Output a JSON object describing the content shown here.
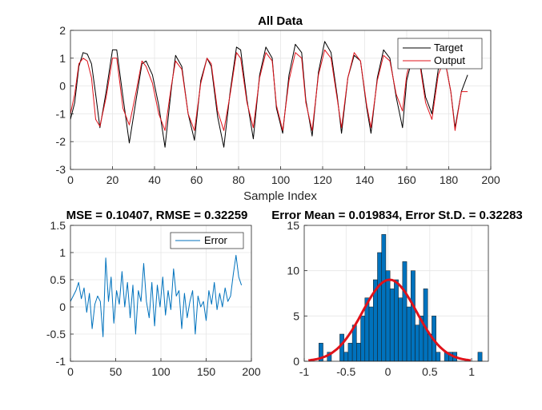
{
  "chart_data": [
    {
      "type": "line",
      "title": "All Data",
      "xlabel": "Sample Index",
      "ylabel": "",
      "xlim": [
        0,
        200
      ],
      "ylim": [
        -3,
        2
      ],
      "xticks": [
        "0",
        "20",
        "40",
        "60",
        "80",
        "100",
        "120",
        "140",
        "160",
        "180",
        "200"
      ],
      "yticks": [
        "-3",
        "-2",
        "-1",
        "0",
        "1",
        "2"
      ],
      "grid": true,
      "legend": "top-right",
      "series": [
        {
          "name": "Target",
          "color": "#000000",
          "x": [
            0,
            2,
            4,
            6,
            8,
            10,
            12,
            14,
            17,
            20,
            22,
            25,
            28,
            31,
            34,
            36,
            39,
            42,
            45,
            48,
            50,
            53,
            56,
            59,
            62,
            65,
            67,
            70,
            73,
            76,
            79,
            81,
            84,
            87,
            90,
            93,
            96,
            98,
            101,
            104,
            107,
            110,
            112,
            115,
            118,
            121,
            124,
            127,
            129,
            132,
            135,
            138,
            141,
            143,
            146,
            149,
            152,
            155,
            158,
            160,
            163,
            166,
            169,
            172,
            175,
            178,
            181,
            183,
            186,
            189
          ],
          "y": [
            -1.2,
            -0.6,
            0.7,
            1.2,
            1.15,
            0.8,
            -0.3,
            -1.5,
            -0.2,
            1.3,
            1.3,
            -0.4,
            -2.05,
            -0.6,
            0.8,
            0.9,
            0.4,
            -0.7,
            -2.2,
            -0.1,
            1.1,
            0.7,
            -1.0,
            -1.95,
            0.2,
            1.0,
            0.7,
            -1.1,
            -2.2,
            -0.2,
            1.4,
            1.3,
            -0.5,
            -1.9,
            0.4,
            1.4,
            1.0,
            -0.8,
            -1.7,
            0.4,
            1.5,
            1.2,
            -0.5,
            -1.8,
            0.5,
            1.6,
            1.2,
            -0.4,
            -1.7,
            0.3,
            1.1,
            0.9,
            -0.8,
            -1.7,
            0.3,
            1.3,
            1.0,
            -0.4,
            -1.5,
            0.2,
            1.1,
            1.0,
            -0.4,
            -1.0,
            0.6,
            1.0,
            -0.2,
            -1.5,
            -0.2,
            0.4
          ]
        },
        {
          "name": "Output",
          "color": "#e0121a",
          "x": [
            0,
            2,
            4,
            6,
            8,
            10,
            12,
            14,
            17,
            20,
            22,
            25,
            28,
            31,
            34,
            36,
            39,
            42,
            45,
            48,
            50,
            53,
            56,
            59,
            62,
            65,
            67,
            70,
            73,
            76,
            79,
            81,
            84,
            87,
            90,
            93,
            96,
            98,
            101,
            104,
            107,
            110,
            112,
            115,
            118,
            121,
            124,
            127,
            129,
            132,
            135,
            138,
            141,
            143,
            146,
            149,
            152,
            155,
            158,
            160,
            163,
            166,
            169,
            172,
            175,
            178,
            181,
            183,
            186,
            189
          ],
          "y": [
            -1.0,
            -0.3,
            0.8,
            1.0,
            0.9,
            0.3,
            -1.2,
            -1.45,
            -0.4,
            1.0,
            1.0,
            -0.8,
            -1.4,
            -0.3,
            0.9,
            0.7,
            0.1,
            -1.0,
            -1.6,
            0.0,
            0.9,
            0.6,
            -1.0,
            -1.6,
            0.1,
            1.0,
            0.8,
            -0.9,
            -1.6,
            -0.3,
            1.2,
            1.0,
            -0.6,
            -1.5,
            0.3,
            1.2,
            0.9,
            -0.7,
            -1.6,
            0.2,
            1.2,
            1.0,
            -0.6,
            -1.6,
            0.4,
            1.3,
            1.0,
            -0.5,
            -1.5,
            0.3,
            1.2,
            0.9,
            -0.7,
            -1.5,
            0.2,
            1.1,
            0.9,
            -0.3,
            -0.9,
            0.4,
            1.2,
            0.9,
            -0.6,
            -1.2,
            0.4,
            1.0,
            -0.2,
            -1.6,
            -0.2,
            -0.2
          ]
        }
      ]
    },
    {
      "type": "line",
      "title": "MSE = 0.10407, RMSE = 0.32259",
      "xlim": [
        0,
        200
      ],
      "ylim": [
        -1,
        1.5
      ],
      "xticks": [
        "0",
        "50",
        "100",
        "150",
        "200"
      ],
      "yticks": [
        "-1",
        "-0.5",
        "0",
        "0.5",
        "1",
        "1.5"
      ],
      "grid": true,
      "legend": "top-right",
      "series": [
        {
          "name": "Error",
          "color": "#0072bd",
          "x": [
            0,
            3,
            6,
            9,
            12,
            15,
            18,
            21,
            24,
            27,
            30,
            33,
            36,
            39,
            42,
            45,
            48,
            51,
            54,
            57,
            60,
            63,
            66,
            69,
            72,
            75,
            78,
            81,
            84,
            87,
            90,
            93,
            96,
            99,
            102,
            105,
            108,
            111,
            114,
            117,
            120,
            123,
            126,
            129,
            132,
            135,
            138,
            141,
            144,
            147,
            150,
            153,
            156,
            159,
            162,
            165,
            168,
            171,
            174,
            177,
            180,
            183,
            186,
            189
          ],
          "y": [
            0.1,
            0.2,
            0.3,
            0.45,
            0.15,
            0.35,
            -0.1,
            0.25,
            -0.4,
            0.05,
            0.2,
            0.1,
            -0.55,
            0.9,
            0.1,
            0.55,
            -0.3,
            0.3,
            0.05,
            0.65,
            0.0,
            0.45,
            -0.2,
            0.4,
            -0.5,
            0.3,
            0.1,
            0.8,
            0.1,
            -0.2,
            0.45,
            -0.35,
            0.4,
            0.0,
            0.55,
            -0.15,
            0.3,
            -0.05,
            0.7,
            0.2,
            0.3,
            -0.4,
            0.25,
            -0.2,
            0.1,
            0.3,
            -0.5,
            0.2,
            0.0,
            0.1,
            -0.25,
            0.3,
            0.05,
            0.45,
            -0.05,
            0.25,
            0.0,
            0.35,
            0.1,
            0.2,
            0.6,
            0.95,
            0.55,
            0.4
          ]
        }
      ]
    },
    {
      "type": "bar",
      "title": "Error Mean = 0.019834, Error St.D. = 0.32283",
      "xlim": [
        -1,
        1.2
      ],
      "ylim": [
        0,
        15
      ],
      "xticks": [
        "-1",
        "-0.5",
        "0",
        "0.5",
        "1"
      ],
      "yticks": [
        "0",
        "5",
        "10",
        "15"
      ],
      "grid": true,
      "bin_edges": [
        -0.825,
        -0.775,
        -0.725,
        -0.675,
        -0.625,
        -0.575,
        -0.525,
        -0.475,
        -0.425,
        -0.375,
        -0.325,
        -0.275,
        -0.225,
        -0.175,
        -0.125,
        -0.075,
        -0.025,
        0.025,
        0.075,
        0.125,
        0.175,
        0.225,
        0.275,
        0.325,
        0.375,
        0.425,
        0.475,
        0.525,
        0.575,
        0.625,
        0.675,
        0.725,
        0.775,
        0.825,
        0.875,
        0.925,
        0.975,
        1.025,
        1.075,
        1.125
      ],
      "counts": [
        2,
        0,
        1,
        0,
        0,
        3,
        1,
        2,
        4,
        2,
        5,
        7,
        6,
        9,
        12,
        14,
        10,
        8,
        9,
        7,
        11,
        6,
        10,
        4,
        5,
        8,
        3,
        5,
        1,
        0,
        1,
        1,
        1,
        0,
        0,
        0,
        0,
        0,
        1
      ],
      "bar_color": "#0072bd",
      "fit_curve": {
        "color": "#e0121a",
        "mean": 0.019834,
        "sd": 0.32283,
        "peak": 9.0
      }
    }
  ]
}
